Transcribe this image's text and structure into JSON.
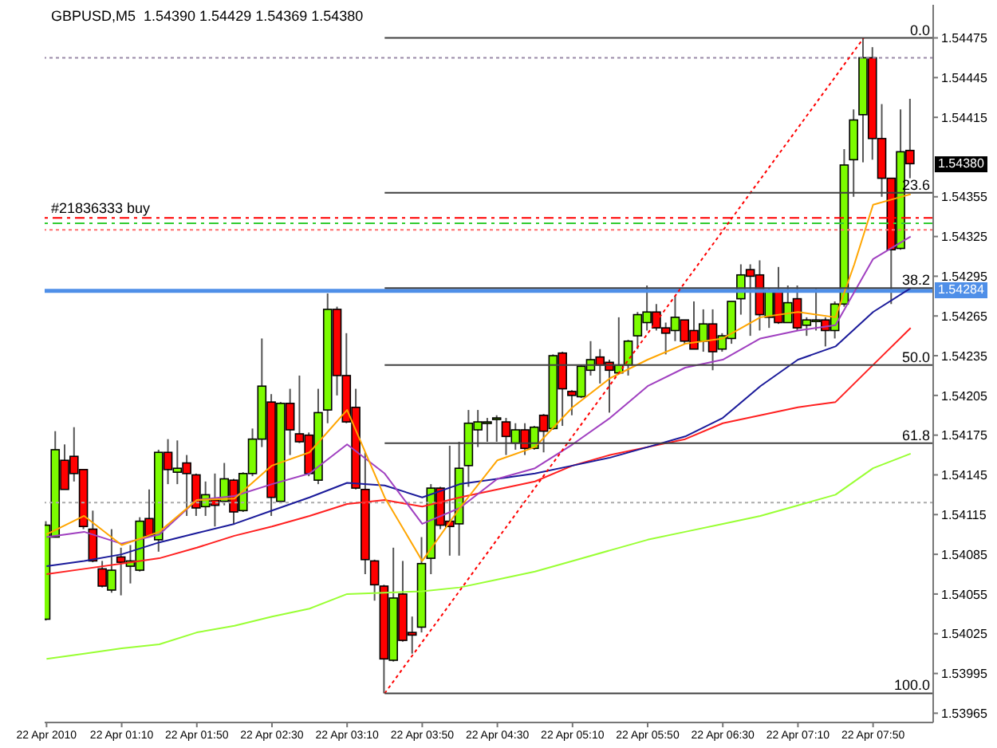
{
  "chart_data": {
    "type": "candlestick",
    "title": "GBPUSD,M5  1.54390 1.54429 1.54369 1.54380",
    "x": [
      "2010-04-22T00:30",
      "2010-04-22T00:35",
      "2010-04-22T00:40",
      "2010-04-22T00:45",
      "2010-04-22T00:50",
      "2010-04-22T00:55",
      "2010-04-22T01:00",
      "2010-04-22T01:05",
      "2010-04-22T01:10",
      "2010-04-22T01:15",
      "2010-04-22T01:20",
      "2010-04-22T01:25",
      "2010-04-22T01:30",
      "2010-04-22T01:35",
      "2010-04-22T01:40",
      "2010-04-22T01:45",
      "2010-04-22T01:50",
      "2010-04-22T01:55",
      "2010-04-22T02:00",
      "2010-04-22T02:05",
      "2010-04-22T02:10",
      "2010-04-22T02:15",
      "2010-04-22T02:20",
      "2010-04-22T02:25",
      "2010-04-22T02:30",
      "2010-04-22T02:35",
      "2010-04-22T02:40",
      "2010-04-22T02:45",
      "2010-04-22T02:50",
      "2010-04-22T02:55",
      "2010-04-22T03:00",
      "2010-04-22T03:05",
      "2010-04-22T03:10",
      "2010-04-22T03:15",
      "2010-04-22T03:20",
      "2010-04-22T03:25",
      "2010-04-22T03:30",
      "2010-04-22T03:35",
      "2010-04-22T03:40",
      "2010-04-22T03:45",
      "2010-04-22T03:50",
      "2010-04-22T03:55",
      "2010-04-22T04:00",
      "2010-04-22T04:05",
      "2010-04-22T04:10",
      "2010-04-22T04:15",
      "2010-04-22T04:20",
      "2010-04-22T04:25",
      "2010-04-22T04:30",
      "2010-04-22T04:35",
      "2010-04-22T04:40",
      "2010-04-22T04:45",
      "2010-04-22T04:50",
      "2010-04-22T04:55",
      "2010-04-22T05:00",
      "2010-04-22T05:05",
      "2010-04-22T05:10",
      "2010-04-22T05:15",
      "2010-04-22T05:20",
      "2010-04-22T05:25",
      "2010-04-22T05:30",
      "2010-04-22T05:35",
      "2010-04-22T05:40",
      "2010-04-22T05:45",
      "2010-04-22T05:50",
      "2010-04-22T05:55",
      "2010-04-22T06:00",
      "2010-04-22T06:05",
      "2010-04-22T06:10",
      "2010-04-22T06:15",
      "2010-04-22T06:20",
      "2010-04-22T06:25",
      "2010-04-22T06:30",
      "2010-04-22T06:35",
      "2010-04-22T06:40",
      "2010-04-22T06:45",
      "2010-04-22T06:50",
      "2010-04-22T06:55",
      "2010-04-22T07:00",
      "2010-04-22T07:05",
      "2010-04-22T07:10",
      "2010-04-22T07:15",
      "2010-04-22T07:20",
      "2010-04-22T07:25",
      "2010-04-22T07:30",
      "2010-04-22T07:35",
      "2010-04-22T07:40",
      "2010-04-22T07:45",
      "2010-04-22T07:50",
      "2010-04-22T07:55",
      "2010-04-22T08:00",
      "2010-04-22T08:05",
      "2010-04-22T08:10"
    ],
    "ohlc": [
      [
        1.54036,
        1.5411,
        1.54035,
        1.54107
      ],
      [
        1.54098,
        1.54178,
        1.54098,
        1.54164
      ],
      [
        1.54156,
        1.54168,
        1.54134,
        1.54134
      ],
      [
        1.54159,
        1.54181,
        1.5414,
        1.54146
      ],
      [
        1.54149,
        1.54149,
        1.54104,
        1.54106
      ],
      [
        1.54104,
        1.54118,
        1.54079,
        1.5408
      ],
      [
        1.54074,
        1.5408,
        1.5406,
        1.54061
      ],
      [
        1.54058,
        1.54104,
        1.54056,
        1.54073
      ],
      [
        1.54083,
        1.5409,
        1.54054,
        1.54079
      ],
      [
        1.54076,
        1.54092,
        1.54063,
        1.5408
      ],
      [
        1.54073,
        1.54113,
        1.54072,
        1.5411
      ],
      [
        1.54112,
        1.54134,
        1.54098,
        1.54099
      ],
      [
        1.54096,
        1.54164,
        1.54087,
        1.54162
      ],
      [
        1.54162,
        1.54172,
        1.54138,
        1.54149
      ],
      [
        1.54147,
        1.54171,
        1.54138,
        1.5415
      ],
      [
        1.54154,
        1.5416,
        1.54114,
        1.54146
      ],
      [
        1.54145,
        1.54146,
        1.54114,
        1.5412
      ],
      [
        1.54121,
        1.5414,
        1.54114,
        1.5413
      ],
      [
        1.54126,
        1.54146,
        1.54106,
        1.54122
      ],
      [
        1.54125,
        1.54154,
        1.54122,
        1.54142
      ],
      [
        1.54141,
        1.54142,
        1.54108,
        1.54117
      ],
      [
        1.54118,
        1.54147,
        1.54117,
        1.54146
      ],
      [
        1.54146,
        1.5418,
        1.54144,
        1.54172
      ],
      [
        1.54172,
        1.54248,
        1.54166,
        1.54212
      ],
      [
        1.542,
        1.54206,
        1.54114,
        1.54128
      ],
      [
        1.54125,
        1.542,
        1.54124,
        1.54199
      ],
      [
        1.54199,
        1.5421,
        1.5416,
        1.54179
      ],
      [
        1.54176,
        1.5422,
        1.54169,
        1.5417
      ],
      [
        1.54175,
        1.54177,
        1.54144,
        1.54146
      ],
      [
        1.54141,
        1.5421,
        1.54138,
        1.54192
      ],
      [
        1.54194,
        1.54282,
        1.54184,
        1.5427
      ],
      [
        1.5427,
        1.54272,
        1.54205,
        1.5422
      ],
      [
        1.5422,
        1.54252,
        1.54184,
        1.54185
      ],
      [
        1.54196,
        1.5421,
        1.54134,
        1.54135
      ],
      [
        1.54134,
        1.54162,
        1.5407,
        1.54081
      ],
      [
        1.5408,
        1.54081,
        1.5405,
        1.54062
      ],
      [
        1.54061,
        1.54062,
        1.5398,
        1.54006
      ],
      [
        1.54005,
        1.5409,
        1.54004,
        1.54052
      ],
      [
        1.54055,
        1.5408,
        1.54019,
        1.5402
      ],
      [
        1.54026,
        1.54038,
        1.5401,
        1.54024
      ],
      [
        1.5403,
        1.54098,
        1.54026,
        1.54078
      ],
      [
        1.54082,
        1.54138,
        1.5407,
        1.54135
      ],
      [
        1.54135,
        1.54136,
        1.54104,
        1.54107
      ],
      [
        1.5411,
        1.54167,
        1.54084,
        1.54106
      ],
      [
        1.54108,
        1.5417,
        1.54084,
        1.5415
      ],
      [
        1.54152,
        1.54194,
        1.54136,
        1.54184
      ],
      [
        1.54179,
        1.54194,
        1.54166,
        1.54185
      ],
      [
        1.54184,
        1.54188,
        1.5417,
        1.54185
      ],
      [
        1.54187,
        1.5419,
        1.5417,
        1.54188
      ],
      [
        1.54185,
        1.54188,
        1.5416,
        1.54174
      ],
      [
        1.54169,
        1.54184,
        1.54164,
        1.54179
      ],
      [
        1.54179,
        1.54184,
        1.5416,
        1.54165
      ],
      [
        1.54165,
        1.54182,
        1.54164,
        1.54181
      ],
      [
        1.5419,
        1.54191,
        1.54162,
        1.54178
      ],
      [
        1.5418,
        1.54236,
        1.54179,
        1.54235
      ],
      [
        1.54237,
        1.54238,
        1.54182,
        1.5421
      ],
      [
        1.54208,
        1.54209,
        1.5419,
        1.54205
      ],
      [
        1.54204,
        1.54228,
        1.54203,
        1.54227
      ],
      [
        1.54224,
        1.54246,
        1.5422,
        1.54232
      ],
      [
        1.54234,
        1.5424,
        1.54214,
        1.54228
      ],
      [
        1.5423,
        1.54232,
        1.54192,
        1.54224
      ],
      [
        1.54222,
        1.54264,
        1.54222,
        1.54228
      ],
      [
        1.54228,
        1.54247,
        1.5422,
        1.54246
      ],
      [
        1.5425,
        1.54268,
        1.5424,
        1.54266
      ],
      [
        1.5426,
        1.54288,
        1.54254,
        1.54268
      ],
      [
        1.54268,
        1.54274,
        1.54254,
        1.54256
      ],
      [
        1.54256,
        1.5426,
        1.54236,
        1.54252
      ],
      [
        1.54254,
        1.5428,
        1.54246,
        1.54264
      ],
      [
        1.54262,
        1.54262,
        1.54244,
        1.54246
      ],
      [
        1.54254,
        1.54276,
        1.5424,
        1.5424
      ],
      [
        1.54246,
        1.5427,
        1.54238,
        1.54259
      ],
      [
        1.54259,
        1.5427,
        1.54224,
        1.54238
      ],
      [
        1.5424,
        1.54252,
        1.54238,
        1.5425
      ],
      [
        1.54248,
        1.54276,
        1.54244,
        1.54276
      ],
      [
        1.54278,
        1.54304,
        1.54266,
        1.54296
      ],
      [
        1.543,
        1.54304,
        1.5425,
        1.54295
      ],
      [
        1.54296,
        1.54307,
        1.54254,
        1.54266
      ],
      [
        1.54264,
        1.54286,
        1.54256,
        1.54284
      ],
      [
        1.54284,
        1.54302,
        1.54259,
        1.5426
      ],
      [
        1.5426,
        1.54288,
        1.5426,
        1.54275
      ],
      [
        1.54278,
        1.54288,
        1.54254,
        1.54256
      ],
      [
        1.54258,
        1.54264,
        1.5425,
        1.54262
      ],
      [
        1.54261,
        1.54286,
        1.54254,
        1.54262
      ],
      [
        1.54262,
        1.54264,
        1.54242,
        1.54254
      ],
      [
        1.54254,
        1.54276,
        1.54248,
        1.54274
      ],
      [
        1.54274,
        1.54391,
        1.54272,
        1.54379
      ],
      [
        1.54383,
        1.54421,
        1.54355,
        1.54413
      ],
      [
        1.54417,
        1.54475,
        1.54381,
        1.5446
      ],
      [
        1.5446,
        1.54468,
        1.54383,
        1.54399
      ],
      [
        1.54399,
        1.54425,
        1.54355,
        1.54369
      ],
      [
        1.54369,
        1.54369,
        1.54274,
        1.54315
      ],
      [
        1.54316,
        1.54421,
        1.54315,
        1.54389
      ],
      [
        1.5439,
        1.54429,
        1.54369,
        1.5438
      ]
    ],
    "colors": [
      "#7cfc00",
      "#7cfc00",
      "#ff0000",
      "#ff0000",
      "#ff0000",
      "#ff0000",
      "#ff0000",
      "#7cfc00",
      "#ff0000",
      "#7cfc00",
      "#7cfc00",
      "#ff0000",
      "#7cfc00",
      "#ff0000",
      "#7cfc00",
      "#ff0000",
      "#ff0000",
      "#7cfc00",
      "#ff0000",
      "#7cfc00",
      "#ff0000",
      "#7cfc00",
      "#7cfc00",
      "#7cfc00",
      "#ff0000",
      "#7cfc00",
      "#ff0000",
      "#ff0000",
      "#ff0000",
      "#7cfc00",
      "#7cfc00",
      "#ff0000",
      "#ff0000",
      "#ff0000",
      "#ff0000",
      "#ff0000",
      "#ff0000",
      "#7cfc00",
      "#ff0000",
      "#ff0000",
      "#7cfc00",
      "#7cfc00",
      "#ff0000",
      "#ff0000",
      "#7cfc00",
      "#7cfc00",
      "#7cfc00",
      "#7cfc00",
      "#7cfc00",
      "#ff0000",
      "#7cfc00",
      "#ff0000",
      "#7cfc00",
      "#ff0000",
      "#7cfc00",
      "#ff0000",
      "#ff0000",
      "#7cfc00",
      "#7cfc00",
      "#ff0000",
      "#ff0000",
      "#7cfc00",
      "#7cfc00",
      "#7cfc00",
      "#7cfc00",
      "#ff0000",
      "#ff0000",
      "#7cfc00",
      "#ff0000",
      "#ff0000",
      "#7cfc00",
      "#ff0000",
      "#7cfc00",
      "#7cfc00",
      "#7cfc00",
      "#ff0000",
      "#ff0000",
      "#7cfc00",
      "#ff0000",
      "#7cfc00",
      "#ff0000",
      "#7cfc00",
      "#7cfc00",
      "#ff0000",
      "#7cfc00",
      "#7cfc00",
      "#7cfc00",
      "#7cfc00",
      "#ff0000",
      "#ff0000",
      "#ff0000",
      "#7cfc00",
      "#ff0000"
    ],
    "series": [
      {
        "type": "line",
        "color": "#99ff33",
        "x": [
          "2010-04-22T00:30",
          "2010-04-22T00:50",
          "2010-04-22T01:10",
          "2010-04-22T01:30",
          "2010-04-22T01:50",
          "2010-04-22T02:10",
          "2010-04-22T02:30",
          "2010-04-22T02:50",
          "2010-04-22T03:10",
          "2010-04-22T03:30",
          "2010-04-22T03:50",
          "2010-04-22T04:10",
          "2010-04-22T04:30",
          "2010-04-22T04:50",
          "2010-04-22T05:10",
          "2010-04-22T05:30",
          "2010-04-22T05:50",
          "2010-04-22T06:10",
          "2010-04-22T06:30",
          "2010-04-22T06:50",
          "2010-04-22T07:10",
          "2010-04-22T07:30",
          "2010-04-22T07:50",
          "2010-04-22T08:10"
        ],
        "values": [
          1.54006,
          1.5401,
          1.54014,
          1.54017,
          1.54026,
          1.54031,
          1.54038,
          1.54044,
          1.54055,
          1.54056,
          1.54057,
          1.5406,
          1.54066,
          1.54072,
          1.5408,
          1.54088,
          1.54096,
          1.54102,
          1.54108,
          1.54114,
          1.54122,
          1.5413,
          1.5415,
          1.54161
        ]
      },
      {
        "type": "line",
        "color": "#ff2020",
        "x": [
          "2010-04-22T00:30",
          "2010-04-22T00:50",
          "2010-04-22T01:10",
          "2010-04-22T01:30",
          "2010-04-22T01:50",
          "2010-04-22T02:10",
          "2010-04-22T02:30",
          "2010-04-22T02:50",
          "2010-04-22T03:10",
          "2010-04-22T03:30",
          "2010-04-22T03:50",
          "2010-04-22T04:10",
          "2010-04-22T04:30",
          "2010-04-22T04:50",
          "2010-04-22T05:10",
          "2010-04-22T05:30",
          "2010-04-22T05:50",
          "2010-04-22T06:10",
          "2010-04-22T06:30",
          "2010-04-22T06:50",
          "2010-04-22T07:10",
          "2010-04-22T07:30",
          "2010-04-22T07:50",
          "2010-04-22T08:10"
        ],
        "values": [
          1.5407,
          1.54074,
          1.54078,
          1.54082,
          1.5409,
          1.54099,
          1.54106,
          1.54114,
          1.54123,
          1.54126,
          1.54121,
          1.54128,
          1.54134,
          1.5414,
          1.54152,
          1.5416,
          1.54166,
          1.54172,
          1.54184,
          1.5419,
          1.54196,
          1.542,
          1.54228,
          1.54256
        ]
      },
      {
        "type": "line",
        "color": "#1a1a9a",
        "x": [
          "2010-04-22T00:30",
          "2010-04-22T00:50",
          "2010-04-22T01:10",
          "2010-04-22T01:30",
          "2010-04-22T01:50",
          "2010-04-22T02:10",
          "2010-04-22T02:30",
          "2010-04-22T02:50",
          "2010-04-22T03:10",
          "2010-04-22T03:30",
          "2010-04-22T03:50",
          "2010-04-22T04:10",
          "2010-04-22T04:30",
          "2010-04-22T04:50",
          "2010-04-22T05:10",
          "2010-04-22T05:30",
          "2010-04-22T05:50",
          "2010-04-22T06:10",
          "2010-04-22T06:30",
          "2010-04-22T06:50",
          "2010-04-22T07:10",
          "2010-04-22T07:30",
          "2010-04-22T07:50",
          "2010-04-22T08:10"
        ],
        "values": [
          1.54076,
          1.5408,
          1.54085,
          1.54094,
          1.54101,
          1.54108,
          1.54118,
          1.54128,
          1.54139,
          1.54137,
          1.54128,
          1.54138,
          1.54142,
          1.54146,
          1.54152,
          1.54158,
          1.54166,
          1.54174,
          1.54188,
          1.54212,
          1.54232,
          1.54242,
          1.54268,
          1.54286
        ]
      },
      {
        "type": "line",
        "color": "#a040c0",
        "x": [
          "2010-04-22T00:30",
          "2010-04-22T00:50",
          "2010-04-22T01:10",
          "2010-04-22T01:30",
          "2010-04-22T01:50",
          "2010-04-22T02:10",
          "2010-04-22T02:30",
          "2010-04-22T02:50",
          "2010-04-22T03:10",
          "2010-04-22T03:30",
          "2010-04-22T03:50",
          "2010-04-22T04:10",
          "2010-04-22T04:30",
          "2010-04-22T04:50",
          "2010-04-22T05:10",
          "2010-04-22T05:30",
          "2010-04-22T05:50",
          "2010-04-22T06:10",
          "2010-04-22T06:30",
          "2010-04-22T06:50",
          "2010-04-22T07:10",
          "2010-04-22T07:30",
          "2010-04-22T07:50",
          "2010-04-22T08:10"
        ],
        "values": [
          1.54098,
          1.54102,
          1.54093,
          1.541,
          1.54126,
          1.54129,
          1.54138,
          1.54146,
          1.54168,
          1.54146,
          1.54108,
          1.5412,
          1.54142,
          1.5415,
          1.54168,
          1.54188,
          1.54212,
          1.54226,
          1.54232,
          1.54248,
          1.54254,
          1.54258,
          1.54308,
          1.54325
        ]
      },
      {
        "type": "line",
        "color": "#ffa500",
        "x": [
          "2010-04-22T00:30",
          "2010-04-22T00:50",
          "2010-04-22T01:10",
          "2010-04-22T01:30",
          "2010-04-22T01:50",
          "2010-04-22T02:10",
          "2010-04-22T02:30",
          "2010-04-22T02:50",
          "2010-04-22T03:10",
          "2010-04-22T03:30",
          "2010-04-22T03:50",
          "2010-04-22T04:10",
          "2010-04-22T04:30",
          "2010-04-22T04:50",
          "2010-04-22T05:10",
          "2010-04-22T05:30",
          "2010-04-22T05:50",
          "2010-04-22T06:10",
          "2010-04-22T06:30",
          "2010-04-22T06:50",
          "2010-04-22T07:10",
          "2010-04-22T07:30",
          "2010-04-22T07:40",
          "2010-04-22T07:50",
          "2010-04-22T08:00",
          "2010-04-22T08:10"
        ],
        "values": [
          1.541,
          1.54114,
          1.54092,
          1.54102,
          1.54126,
          1.54127,
          1.54152,
          1.54162,
          1.54194,
          1.54128,
          1.5408,
          1.5412,
          1.54156,
          1.54166,
          1.54196,
          1.54218,
          1.54232,
          1.54244,
          1.54248,
          1.54264,
          1.54268,
          1.54264,
          1.54304,
          1.54349,
          1.54353,
          1.54357
        ]
      },
      {
        "type": "line",
        "color": "#ff0000",
        "line_style": "dotted",
        "x": [
          "2010-04-22T03:30",
          "2010-04-22T07:45"
        ],
        "values": [
          1.5398,
          1.54475
        ]
      },
      {
        "type": "line",
        "color": "#404040",
        "x": [
          "2010-04-22T03:30",
          "2010-04-22T08:22"
        ],
        "values": [
          1.54475,
          1.54475
        ]
      },
      {
        "type": "line",
        "color": "#404040",
        "x": [
          "2010-04-22T03:30",
          "2010-04-22T08:22"
        ],
        "values": [
          1.54358,
          1.54358
        ]
      },
      {
        "type": "line",
        "color": "#404040",
        "x": [
          "2010-04-22T03:30",
          "2010-04-22T08:22"
        ],
        "values": [
          1.54286,
          1.54286
        ]
      },
      {
        "type": "line",
        "color": "#404040",
        "x": [
          "2010-04-22T03:30",
          "2010-04-22T08:22"
        ],
        "values": [
          1.54228,
          1.54228
        ]
      },
      {
        "type": "line",
        "color": "#404040",
        "x": [
          "2010-04-22T03:30",
          "2010-04-22T08:22"
        ],
        "values": [
          1.54169,
          1.54169
        ]
      },
      {
        "type": "line",
        "color": "#404040",
        "x": [
          "2010-04-22T03:30",
          "2010-04-22T08:22"
        ],
        "values": [
          1.5398,
          1.5398
        ]
      }
    ],
    "xlim": [
      "2010-04-22T00:29",
      "2010-04-22T08:22"
    ],
    "xticks": [
      {
        "value": "2010-04-22T00:30",
        "label": "22 Apr 2010"
      },
      {
        "value": "2010-04-22T01:10",
        "label": "22 Apr 01:10"
      },
      {
        "value": "2010-04-22T01:50",
        "label": "22 Apr 01:50"
      },
      {
        "value": "2010-04-22T02:30",
        "label": "22 Apr 02:30"
      },
      {
        "value": "2010-04-22T03:10",
        "label": "22 Apr 03:10"
      },
      {
        "value": "2010-04-22T03:50",
        "label": "22 Apr 03:50"
      },
      {
        "value": "2010-04-22T04:30",
        "label": "22 Apr 04:30"
      },
      {
        "value": "2010-04-22T05:10",
        "label": "22 Apr 05:10"
      },
      {
        "value": "2010-04-22T05:50",
        "label": "22 Apr 05:50"
      },
      {
        "value": "2010-04-22T06:30",
        "label": "22 Apr 06:30"
      },
      {
        "value": "2010-04-22T07:10",
        "label": "22 Apr 07:10"
      },
      {
        "value": "2010-04-22T07:50",
        "label": "22 Apr 07:50"
      }
    ],
    "ylim": [
      1.53958,
      1.545
    ],
    "yticks": [
      1.53965,
      1.53995,
      1.54025,
      1.54055,
      1.54085,
      1.54115,
      1.54145,
      1.54175,
      1.54205,
      1.54235,
      1.54265,
      1.54295,
      1.54325,
      1.54355,
      1.54415,
      1.54445,
      1.54475
    ],
    "ref_lines": [
      {
        "axis": "y",
        "value": 1.5446,
        "color": "#9a8aa8",
        "line_style": "dotted"
      },
      {
        "axis": "y",
        "value": 1.54339,
        "label": "#21836333 buy",
        "color": "#ff0000",
        "line_style": "dashed"
      },
      {
        "axis": "y",
        "value": 1.54335,
        "color": "#33cc33",
        "line_style": "dashed"
      },
      {
        "axis": "y",
        "value": 1.5433,
        "color": "#ff7070",
        "line_style": "dotted"
      },
      {
        "axis": "y",
        "value": 1.54284,
        "color": "#4f8fe8",
        "line_style": "solid"
      },
      {
        "axis": "y",
        "value": 1.54124,
        "color": "#aaaaaa",
        "line_style": "dotted"
      }
    ],
    "annotations": [
      {
        "text": "0.0",
        "x": "2010-04-22T08:22",
        "y": 1.54475
      },
      {
        "text": "23.6",
        "x": "2010-04-22T08:22",
        "y": 1.54358
      },
      {
        "text": "38.2",
        "x": "2010-04-22T08:22",
        "y": 1.54286
      },
      {
        "text": "50.0",
        "x": "2010-04-22T08:22",
        "y": 1.54228
      },
      {
        "text": "61.8",
        "x": "2010-04-22T08:22",
        "y": 1.54169
      },
      {
        "text": "100.0",
        "x": "2010-04-22T08:22",
        "y": 1.5398
      },
      {
        "text": "1.54380",
        "y": 1.5438
      },
      {
        "text": "1.54284",
        "y": 1.54284
      }
    ]
  }
}
